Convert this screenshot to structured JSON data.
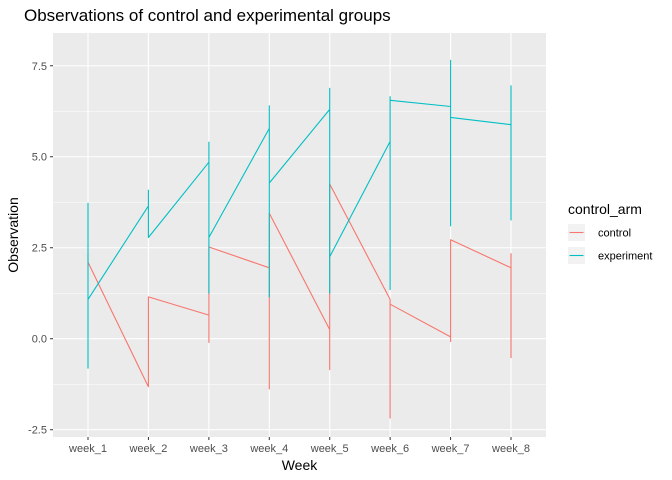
{
  "chart_data": {
    "type": "line",
    "title": "Observations of control and experimental groups",
    "xlabel": "Week",
    "ylabel": "Observation",
    "categories": [
      "week_1",
      "week_2",
      "week_3",
      "week_4",
      "week_5",
      "week_6",
      "week_7",
      "week_8"
    ],
    "ylim": [
      -2.7,
      8.4
    ],
    "yticks": [
      -2.5,
      0.0,
      2.5,
      5.0,
      7.5
    ],
    "ytick_labels": [
      "-2.5",
      "0.0",
      "2.5",
      "5.0",
      "7.5"
    ],
    "grid": true,
    "legend": {
      "title": "control_arm",
      "position": "right",
      "entries": [
        "control",
        "experiment"
      ]
    },
    "series": [
      {
        "name": "control",
        "color": "#F8766D",
        "path": [
          [
            "week_1",
            2.35
          ],
          [
            "week_1",
            2.1
          ],
          [
            "week_2",
            -1.32
          ],
          [
            "week_2",
            1.15
          ],
          [
            "week_3",
            0.65
          ],
          [
            "week_3",
            -0.1
          ],
          [
            "week_3",
            2.52
          ],
          [
            "week_4",
            1.95
          ],
          [
            "week_4",
            -1.38
          ],
          [
            "week_4",
            3.45
          ],
          [
            "week_5",
            0.25
          ],
          [
            "week_5",
            -0.85
          ],
          [
            "week_5",
            4.25
          ],
          [
            "week_6",
            1.08
          ],
          [
            "week_6",
            -2.18
          ],
          [
            "week_6",
            0.95
          ],
          [
            "week_7",
            0.05
          ],
          [
            "week_7",
            -0.08
          ],
          [
            "week_7",
            2.72
          ],
          [
            "week_8",
            1.95
          ],
          [
            "week_8",
            -0.52
          ],
          [
            "week_8",
            2.35
          ]
        ]
      },
      {
        "name": "experiment",
        "color": "#00BFC4",
        "path": [
          [
            "week_1",
            -0.82
          ],
          [
            "week_1",
            3.72
          ],
          [
            "week_1",
            1.08
          ],
          [
            "week_2",
            3.65
          ],
          [
            "week_2",
            4.08
          ],
          [
            "week_2",
            2.78
          ],
          [
            "week_3",
            4.85
          ],
          [
            "week_3",
            5.4
          ],
          [
            "week_3",
            1.25
          ],
          [
            "week_3",
            2.78
          ],
          [
            "week_4",
            5.78
          ],
          [
            "week_4",
            6.4
          ],
          [
            "week_4",
            1.15
          ],
          [
            "week_4",
            4.28
          ],
          [
            "week_5",
            6.3
          ],
          [
            "week_5",
            6.88
          ],
          [
            "week_5",
            1.25
          ],
          [
            "week_5",
            2.25
          ],
          [
            "week_6",
            5.42
          ],
          [
            "week_6",
            6.65
          ],
          [
            "week_6",
            1.35
          ],
          [
            "week_6",
            6.55
          ],
          [
            "week_7",
            6.38
          ],
          [
            "week_7",
            7.65
          ],
          [
            "week_7",
            3.1
          ],
          [
            "week_7",
            6.08
          ],
          [
            "week_8",
            5.88
          ],
          [
            "week_8",
            6.95
          ],
          [
            "week_8",
            3.25
          ]
        ]
      }
    ]
  }
}
